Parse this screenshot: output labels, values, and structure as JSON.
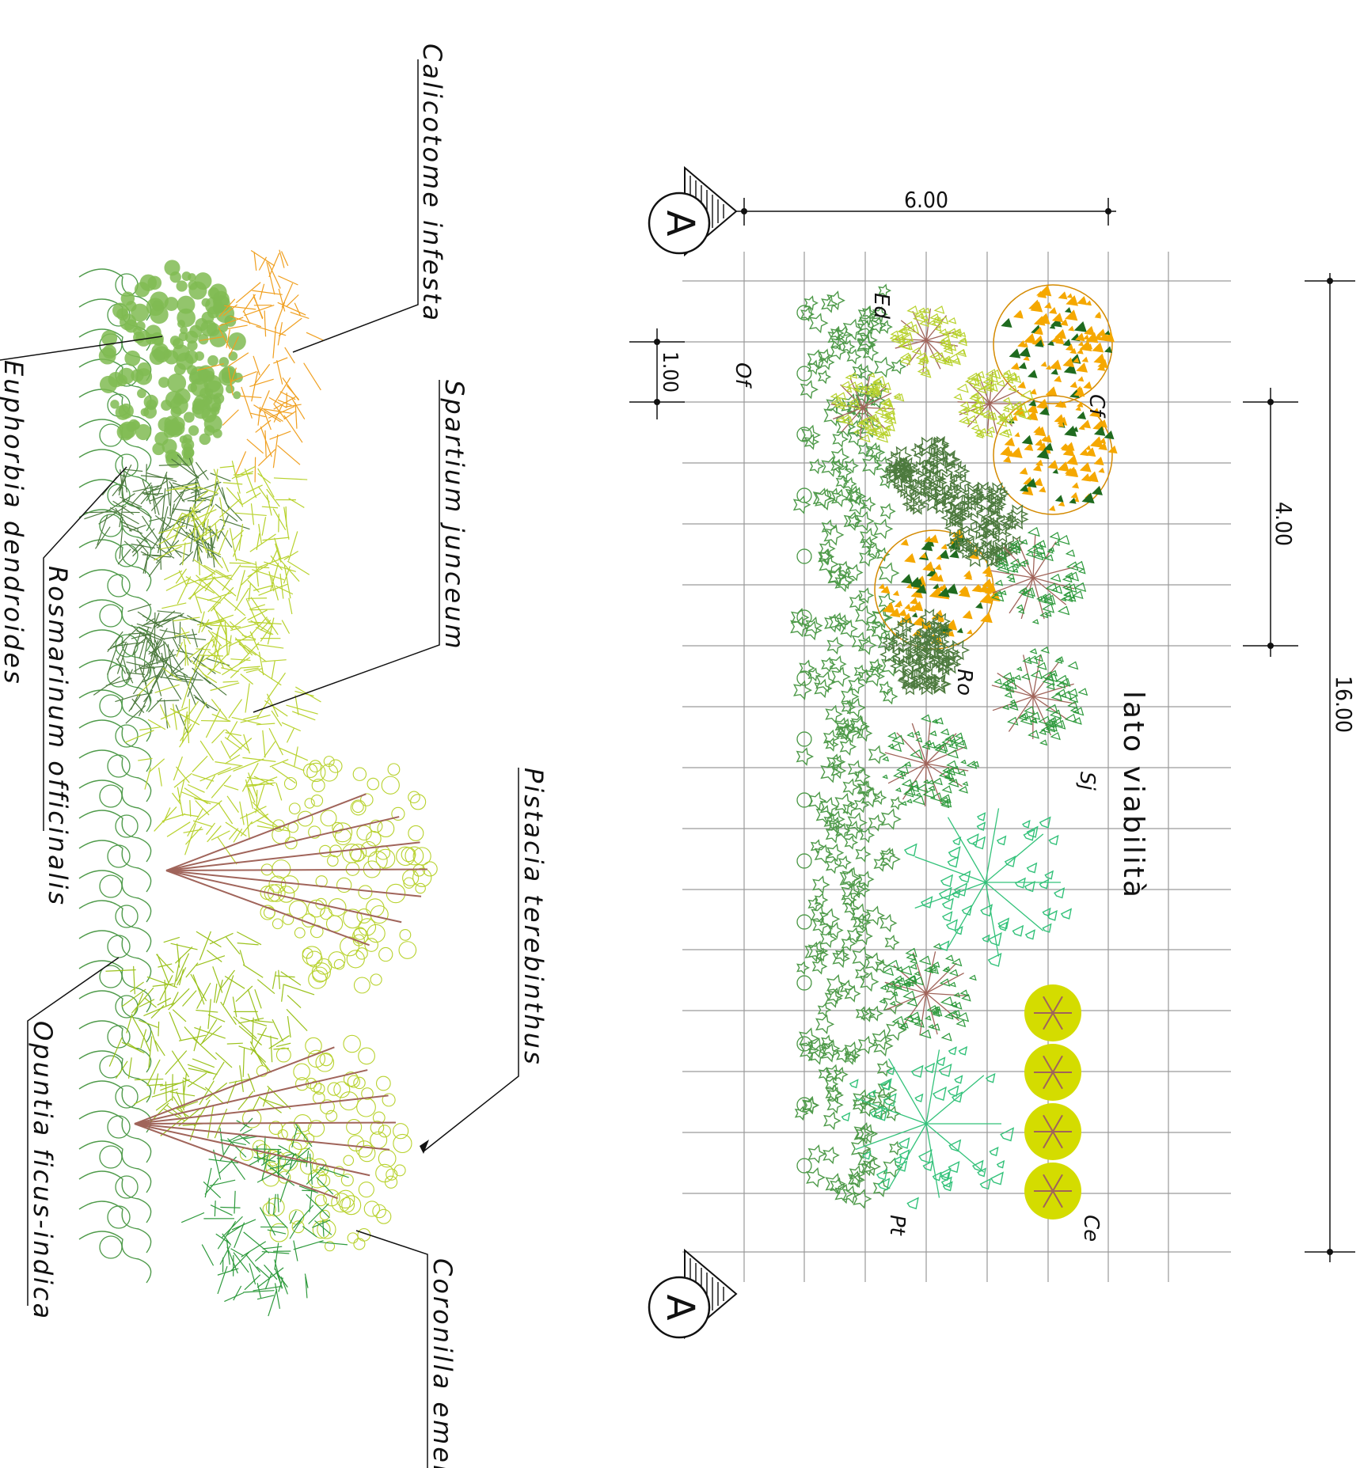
{
  "drawing": {
    "section_marker": "A",
    "side_label": "lato viabilità",
    "dimensions": {
      "width": "6.00",
      "length": "16.00",
      "module": "4.00",
      "spacing": "1.00"
    },
    "plan_codes": [
      "Cf",
      "Ed",
      "Of",
      "Ro",
      "Sj",
      "Pt",
      "Ce"
    ],
    "species": [
      "Calicotome infesta",
      "Euphorbia dendroides",
      "Spartium junceum",
      "Rosmarinum officinalis",
      "Pistacia terebinthus",
      "Opuntia ficus-indica",
      "Coronilla emerus"
    ]
  },
  "colors": {
    "grid": "#9a9a9a",
    "line": "#111111",
    "opuntia": "#4e9a49",
    "pistacia_tree": "#33c27a",
    "cf_gold": "#f5a800",
    "cf_green": "#1f6b1f",
    "ce_yellow": "#d4dc00",
    "rosmarinus": "#4d7a3e",
    "spartium": "#2e9a3c",
    "calicotome_fill": "#80bb52",
    "yellow_green": "#b8d22e",
    "branch": "#a0645a"
  }
}
